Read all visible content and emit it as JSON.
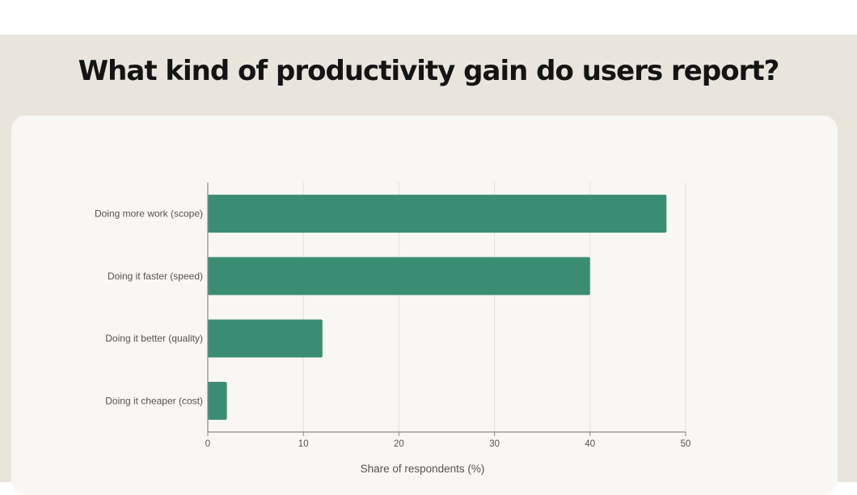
{
  "title": "What kind of productivity gain do users report?",
  "colors": {
    "bar": "#3a8d73",
    "grid": "#e4e1da",
    "axis": "#8c8a84"
  },
  "chart_data": {
    "type": "bar",
    "orientation": "horizontal",
    "categories": [
      "Doing more work (scope)",
      "Doing it faster (speed)",
      "Doing it better (quality)",
      "Doing it cheaper (cost)"
    ],
    "values": [
      48,
      40,
      12,
      2
    ],
    "xlabel": "Share of respondents (%)",
    "ylabel": "",
    "xlim": [
      0,
      50
    ],
    "xticks": [
      0,
      10,
      20,
      30,
      40,
      50
    ],
    "grid": true,
    "legend": "none"
  }
}
